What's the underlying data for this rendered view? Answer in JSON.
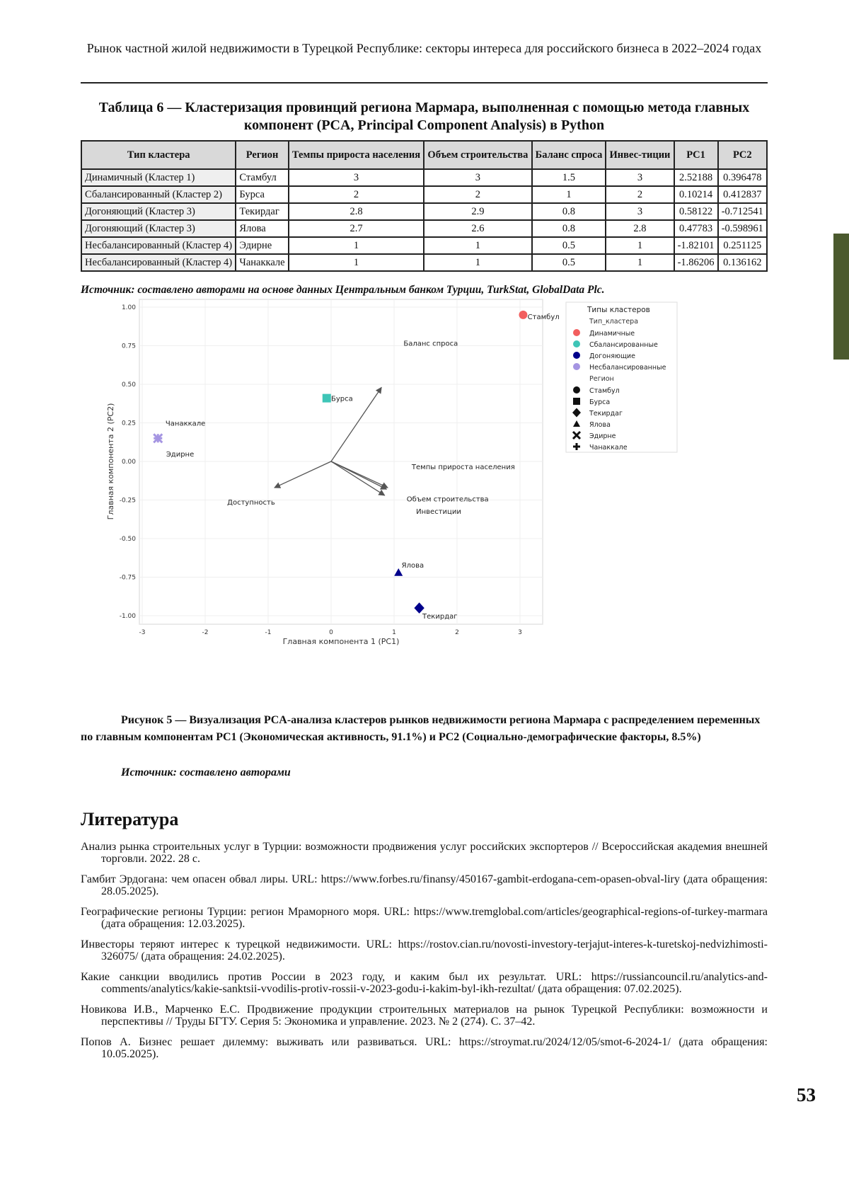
{
  "header": {
    "running_title": "Рынок частной жилой недвижимости в Турецкой Республике: секторы интереса для российского бизнеса в 2022–2024 годах"
  },
  "table": {
    "title": "Таблица 6 — Кластеризация провинций региона Мармара, выполненная с помощью метода главных компонент (PCA, Principal Component Analysis) в Python",
    "columns": [
      "Тип кластера",
      "Регион",
      "Темпы прироста населения",
      "Объем строительства",
      "Баланс спроса",
      "Инвес-тиции",
      "PC1",
      "PC2"
    ],
    "rows": [
      [
        "Динамичный (Кластер 1)",
        "Стамбул",
        "3",
        "3",
        "1.5",
        "3",
        "2.52188",
        "0.396478"
      ],
      [
        "Сбалансированный (Кластер 2)",
        "Бурса",
        "2",
        "2",
        "1",
        "2",
        "0.10214",
        "0.412837"
      ],
      [
        "Догоняющий (Кластер 3)",
        "Текирдаг",
        "2.8",
        "2.9",
        "0.8",
        "3",
        "0.58122",
        "-0.712541"
      ],
      [
        "Догоняющий (Кластер 3)",
        "Ялова",
        "2.7",
        "2.6",
        "0.8",
        "2.8",
        "0.47783",
        "-0.598961"
      ],
      [
        "Несбалансированный (Кластер 4)",
        "Эдирне",
        "1",
        "1",
        "0.5",
        "1",
        "-1.82101",
        "0.251125"
      ],
      [
        "Несбалансированный (Кластер 4)",
        "Чанаккале",
        "1",
        "1",
        "0.5",
        "1",
        "-1.86206",
        "0.136162"
      ]
    ],
    "source": "Источник: составлено авторами на основе данных Центральным банком Турции, TurkStat, GlobalData Plc."
  },
  "chart_data": {
    "type": "scatter",
    "xlabel": "Главная компонента 1 (PC1)",
    "ylabel": "Главная компонента 2 (PC2)",
    "xlim": [
      -3,
      3.3
    ],
    "ylim": [
      -1.05,
      1.05
    ],
    "xticks": [
      "-3",
      "-2",
      "-1",
      "0",
      "1",
      "2",
      "3"
    ],
    "yticks": [
      "1.00",
      "0.75",
      "0.50",
      "0.25",
      "0.00",
      "-0.25",
      "-0.50",
      "-0.75",
      "-1.00"
    ],
    "grid": true,
    "points": [
      {
        "label": "Стамбул",
        "x": 3.05,
        "y": 0.95,
        "cluster": "Динамичные",
        "marker": "circle"
      },
      {
        "label": "Бурса",
        "x": -0.07,
        "y": 0.41,
        "cluster": "Сбалансированные",
        "marker": "square"
      },
      {
        "label": "Текирдаг",
        "x": 1.4,
        "y": -0.95,
        "cluster": "Догоняющие",
        "marker": "diamond"
      },
      {
        "label": "Ялова",
        "x": 1.07,
        "y": -0.72,
        "cluster": "Догоняющие",
        "marker": "triangle"
      },
      {
        "label": "Эдирне",
        "x": -2.75,
        "y": 0.15,
        "cluster": "Несбалансированные",
        "marker": "x"
      },
      {
        "label": "Чанаккале",
        "x": -2.75,
        "y": 0.15,
        "cluster": "Несбалансированные",
        "marker": "plus"
      }
    ],
    "loadings": [
      {
        "label": "Баланс спроса",
        "x": 0.8,
        "y": 0.48
      },
      {
        "label": "Доступность",
        "x": -0.9,
        "y": -0.17
      },
      {
        "label": "Темпы прироста населения",
        "x": 0.9,
        "y": -0.17
      },
      {
        "label": "Объем строительства",
        "x": 0.85,
        "y": -0.22
      },
      {
        "label": "Инвестиции",
        "x": 0.88,
        "y": -0.18
      }
    ],
    "legend": {
      "placement": "right",
      "title": "Типы кластеров",
      "cluster_header": "Тип_кластера",
      "clusters": [
        {
          "name": "Динамичные",
          "color": "#f25e5e"
        },
        {
          "name": "Сбалансированные",
          "color": "#3ec5b7"
        },
        {
          "name": "Догоняющие",
          "color": "#00008b"
        },
        {
          "name": "Несбалансированные",
          "color": "#a595e2"
        }
      ],
      "region_header": "Регион",
      "regions": [
        {
          "name": "Стамбул",
          "marker": "circle"
        },
        {
          "name": "Бурса",
          "marker": "square"
        },
        {
          "name": "Текирдаг",
          "marker": "diamond"
        },
        {
          "name": "Ялова",
          "marker": "triangle"
        },
        {
          "name": "Эдирне",
          "marker": "x"
        },
        {
          "name": "Чанаккале",
          "marker": "plus"
        }
      ]
    }
  },
  "figure": {
    "caption": "Рисунок 5 — Визуализация PCA-анализа кластеров рынков недвижимости региона Мармара с распределением переменных по главным компонентам PC1 (Экономическая активность, 91.1%) и PC2 (Социально-демографические факторы, 8.5%)",
    "source": "Источник: составлено авторами"
  },
  "references": {
    "heading": "Литература",
    "items": [
      "Анализ рынка строительных услуг в Турции: возможности продвижения услуг российских экспортеров // Всероссийская академия внешней торговли. 2022. 28 с.",
      "Гамбит Эрдогана: чем опасен обвал лиры. URL: https://www.forbes.ru/finansy/450167-gambit-erdogana-cem-opasen-obval-liry (дата обращения: 28.05.2025).",
      "Географические регионы Турции: регион Мраморного моря. URL: https://www.tremglobal.com/articles/geographical-regions-of-turkey-marmara (дата обращения: 12.03.2025).",
      "Инвесторы теряют интерес к турецкой недвижимости. URL: https://rostov.cian.ru/novosti-investory-terjajut-interes-k-turetskoj-nedvizhimosti-326075/ (дата обращения: 24.02.2025).",
      "Какие санкции вводились против России в 2023 году, и каким был их результат. URL: https://russiancouncil.ru/analytics-and-comments/analytics/kakie-sanktsii-vvodilis-protiv-rossii-v-2023-godu-i-kakim-byl-ikh-rezultat/ (дата обращения: 07.02.2025).",
      "Новикова И.В., Марченко Е.С. Продвижение продукции строительных материалов на рынок Турецкой Республики: возможности и перспективы // Труды БГТУ. Серия 5: Экономика и управление. 2023. № 2 (274). С. 37–42.",
      "Попов А. Бизнес решает дилемму: выживать или развиваться. URL: https://stroymat.ru/2024/12/05/smot-6-2024-1/ (дата обращения: 10.05.2025)."
    ]
  },
  "page_number": "53",
  "colors": {
    "side_tab": "#4b5a2e"
  }
}
